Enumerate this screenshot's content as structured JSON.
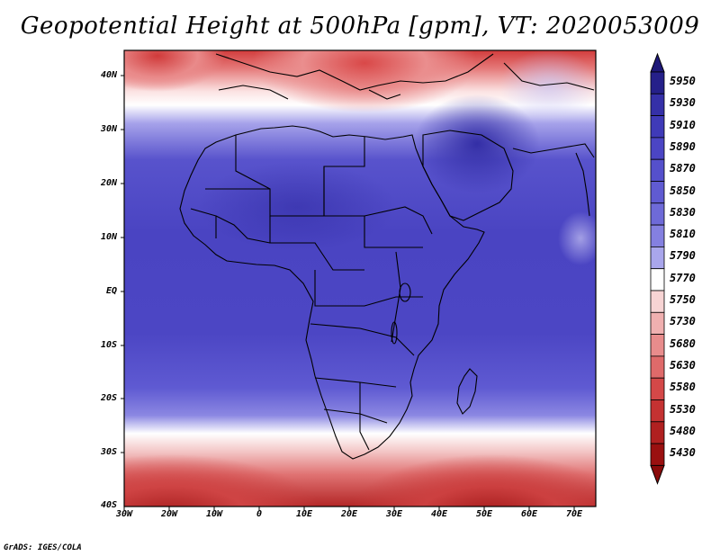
{
  "title": "Geopotential Height at 500hPa [gpm], VT: 2020053009",
  "credit": "GrADS: IGES/COLA",
  "map": {
    "domain": "Africa",
    "variable": "Geopotential Height",
    "level_hpa": 500,
    "units": "gpm",
    "valid_time": "2020053009",
    "lat_labels": [
      "40N",
      "30N",
      "20N",
      "10N",
      "EQ",
      "10S",
      "20S",
      "30S",
      "40S"
    ],
    "lon_labels": [
      "30W",
      "20W",
      "10W",
      "0",
      "10E",
      "20E",
      "30E",
      "40E",
      "50E",
      "60E",
      "70E"
    ]
  },
  "colorbar": {
    "levels": [
      "5950",
      "5930",
      "5910",
      "5890",
      "5870",
      "5850",
      "5830",
      "5810",
      "5790",
      "5770",
      "5750",
      "5730",
      "5680",
      "5630",
      "5580",
      "5530",
      "5480",
      "5430"
    ],
    "colors": [
      "#25208a",
      "#3530a8",
      "#3f3ab8",
      "#4b45c4",
      "#5550cc",
      "#605bd2",
      "#6e6ad8",
      "#8480e0",
      "#a9a6ec",
      "#ffffff",
      "#f7d4d4",
      "#f0b0b0",
      "#e88c8c",
      "#df6a6a",
      "#d44848",
      "#c43232",
      "#b02020",
      "#9a1010"
    ],
    "arrow_top_color": "#1e1878",
    "arrow_bottom_color": "#8a0a0a"
  }
}
